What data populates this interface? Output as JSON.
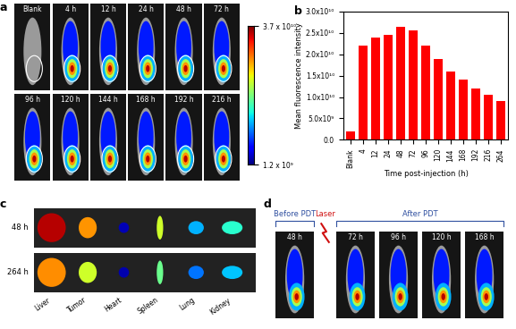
{
  "chart_data": {
    "type": "bar",
    "panel_label": "b",
    "x_label": "Time post-injection (h)",
    "y_label": "Mean fluorescence intensity",
    "categories": [
      "Blank",
      "4",
      "12",
      "24",
      "48",
      "72",
      "96",
      "120",
      "144",
      "168",
      "192",
      "216",
      "264"
    ],
    "values": [
      2000000000,
      22000000000,
      24000000000,
      24500000000,
      26500000000,
      25500000000,
      22000000000,
      19000000000,
      16000000000,
      14000000000,
      12000000000,
      10500000000,
      9000000000
    ],
    "color": "#ff0000",
    "ylim": [
      0,
      30000000000
    ],
    "yticks": [
      {
        "value": 0,
        "label": "0.0"
      },
      {
        "value": 5000000000,
        "label": "5.0x10⁹"
      },
      {
        "value": 10000000000,
        "label": "1.0x10¹⁰"
      },
      {
        "value": 15000000000,
        "label": "1.5x10¹⁰"
      },
      {
        "value": 20000000000,
        "label": "2.0x10¹⁰"
      },
      {
        "value": 25000000000,
        "label": "2.5x10¹⁰"
      },
      {
        "value": 30000000000,
        "label": "3.0x10¹⁰"
      }
    ]
  },
  "panel_a": {
    "label": "a",
    "times": [
      "Blank",
      "4 h",
      "12 h",
      "24 h",
      "48 h",
      "72 h",
      "96 h",
      "120 h",
      "144 h",
      "168 h",
      "192 h",
      "216 h"
    ],
    "colorbar": {
      "range": [
        1200000000,
        37000000000
      ],
      "ticks": [
        {
          "value": 1200000000,
          "label": "1.2 x 10⁹"
        },
        {
          "value": 37000000000,
          "label": "3.7 x 10¹⁰"
        }
      ]
    }
  },
  "panel_c": {
    "label": "c",
    "rows": [
      "48 h",
      "264 h"
    ],
    "organs": [
      "Liver",
      "Tumor",
      "Heart",
      "Spleen",
      "Lung",
      "Kidney"
    ]
  },
  "panel_d": {
    "label": "d",
    "before": {
      "title": "Before PDT",
      "times": [
        "48 h"
      ]
    },
    "laser": "Laser",
    "after": {
      "title": "After PDT",
      "times": [
        "72 h",
        "96 h",
        "120 h",
        "168 h"
      ]
    }
  }
}
